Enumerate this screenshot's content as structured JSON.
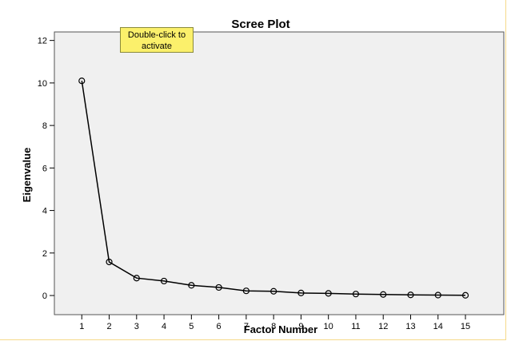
{
  "tooltip": {
    "line1": "Double-click to",
    "line2": "activate"
  },
  "chart_data": {
    "type": "line",
    "title": "Scree Plot",
    "xlabel": "Factor Number",
    "ylabel": "Eigenvalue",
    "x": [
      1,
      2,
      3,
      4,
      5,
      6,
      7,
      8,
      9,
      10,
      11,
      12,
      13,
      14,
      15
    ],
    "series": [
      {
        "values": [
          10.1,
          1.58,
          0.82,
          0.68,
          0.48,
          0.38,
          0.22,
          0.2,
          0.12,
          0.1,
          0.07,
          0.05,
          0.03,
          0.02,
          0.01
        ]
      }
    ],
    "ylim": [
      -0.9,
      12.4
    ],
    "yticks": [
      0,
      2,
      4,
      6,
      8,
      10,
      12
    ],
    "xlim": [
      0,
      16.4
    ],
    "grid": false,
    "marker": "open-circle",
    "colors": {
      "plot_bg": "#f0f0f0",
      "line": "#000000",
      "tooltip_bg": "#fbf06b",
      "frame": "#f5d98a"
    }
  }
}
